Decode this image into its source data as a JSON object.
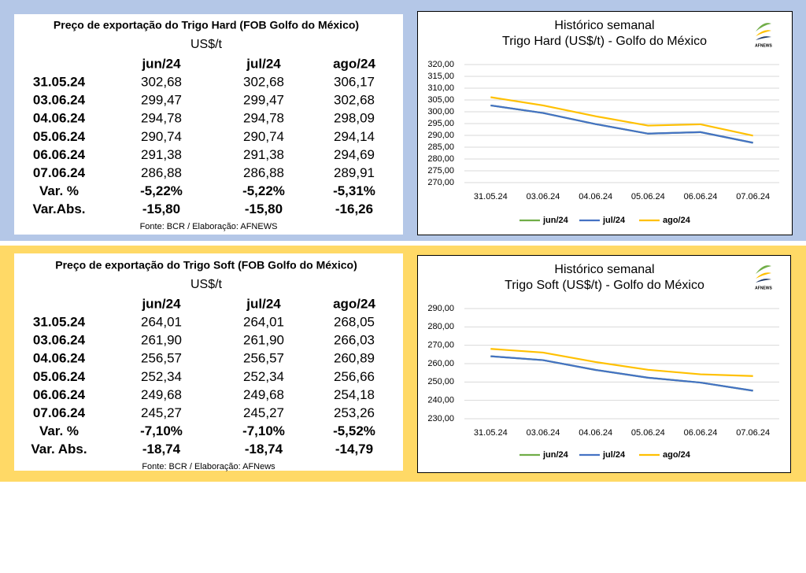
{
  "logo": "AFNEWS",
  "tables": [
    {
      "title": "Preço de exportação do Trigo Hard (FOB Golfo do México)",
      "unit": "US$/t",
      "columns": [
        "jun/24",
        "jul/24",
        "ago/24"
      ],
      "rows": [
        [
          "31.05.24",
          "302,68",
          "302,68",
          "306,17"
        ],
        [
          "03.06.24",
          "299,47",
          "299,47",
          "302,68"
        ],
        [
          "04.06.24",
          "294,78",
          "294,78",
          "298,09"
        ],
        [
          "05.06.24",
          "290,74",
          "290,74",
          "294,14"
        ],
        [
          "06.06.24",
          "291,38",
          "291,38",
          "294,69"
        ],
        [
          "07.06.24",
          "286,88",
          "286,88",
          "289,91"
        ],
        [
          "Var. %",
          "-5,22%",
          "-5,22%",
          "-5,31%"
        ],
        [
          "Var.Abs.",
          "-15,80",
          "-15,80",
          "-16,26"
        ]
      ],
      "source": "Fonte: BCR  / Elaboração: AFNEWS"
    },
    {
      "title": "Preço de exportação do Trigo Soft (FOB Golfo do México)",
      "unit": "US$/t",
      "columns": [
        "jun/24",
        "jul/24",
        "ago/24"
      ],
      "rows": [
        [
          "31.05.24",
          "264,01",
          "264,01",
          "268,05"
        ],
        [
          "03.06.24",
          "261,90",
          "261,90",
          "266,03"
        ],
        [
          "04.06.24",
          "256,57",
          "256,57",
          "260,89"
        ],
        [
          "05.06.24",
          "252,34",
          "252,34",
          "256,66"
        ],
        [
          "06.06.24",
          "249,68",
          "249,68",
          "254,18"
        ],
        [
          "07.06.24",
          "245,27",
          "245,27",
          "253,26"
        ],
        [
          "Var. %",
          "-7,10%",
          "-7,10%",
          "-5,52%"
        ],
        [
          "Var. Abs.",
          "-18,74",
          "-18,74",
          "-14,79"
        ]
      ],
      "source": "Fonte: BCR / Elaboração: AFNews"
    }
  ],
  "chart_data": [
    {
      "type": "line",
      "title": "Histórico semanal",
      "subtitle": "Trigo Hard (US$/t) - Golfo do México",
      "categories": [
        "31.05.24",
        "03.06.24",
        "04.06.24",
        "05.06.24",
        "06.06.24",
        "07.06.24"
      ],
      "series": [
        {
          "name": "jun/24",
          "color": "#70ad47",
          "values": [
            302.68,
            299.47,
            294.78,
            290.74,
            291.38,
            286.88
          ]
        },
        {
          "name": "jul/24",
          "color": "#4472c4",
          "values": [
            302.68,
            299.47,
            294.78,
            290.74,
            291.38,
            286.88
          ]
        },
        {
          "name": "ago/24",
          "color": "#ffc000",
          "values": [
            306.17,
            302.68,
            298.09,
            294.14,
            294.69,
            289.91
          ]
        }
      ],
      "ylim": [
        270,
        320
      ],
      "yticks": [
        {
          "value": 270,
          "label": "270,00"
        },
        {
          "value": 275,
          "label": "275,00"
        },
        {
          "value": 280,
          "label": "280,00"
        },
        {
          "value": 285,
          "label": "285,00"
        },
        {
          "value": 290,
          "label": "290,00"
        },
        {
          "value": 295,
          "label": "295,00"
        },
        {
          "value": 300,
          "label": "300,00"
        },
        {
          "value": 305,
          "label": "305,00"
        },
        {
          "value": 310,
          "label": "310,00"
        },
        {
          "value": 315,
          "label": "315,00"
        },
        {
          "value": 320,
          "label": "320,00"
        }
      ],
      "grid": true,
      "legend": "bottom"
    },
    {
      "type": "line",
      "title": "Histórico semanal",
      "subtitle": "Trigo Soft (US$/t) - Golfo do México",
      "categories": [
        "31.05.24",
        "03.06.24",
        "04.06.24",
        "05.06.24",
        "06.06.24",
        "07.06.24"
      ],
      "series": [
        {
          "name": "jun/24",
          "color": "#70ad47",
          "values": [
            264.01,
            261.9,
            256.57,
            252.34,
            249.68,
            245.27
          ]
        },
        {
          "name": "jul/24",
          "color": "#4472c4",
          "values": [
            264.01,
            261.9,
            256.57,
            252.34,
            249.68,
            245.27
          ]
        },
        {
          "name": "ago/24",
          "color": "#ffc000",
          "values": [
            268.05,
            266.03,
            260.89,
            256.66,
            254.18,
            253.26
          ]
        }
      ],
      "ylim": [
        230,
        290
      ],
      "yticks": [
        {
          "value": 230,
          "label": "230,00"
        },
        {
          "value": 240,
          "label": "240,00"
        },
        {
          "value": 250,
          "label": "250,00"
        },
        {
          "value": 260,
          "label": "260,00"
        },
        {
          "value": 270,
          "label": "270,00"
        },
        {
          "value": 280,
          "label": "280,00"
        },
        {
          "value": 290,
          "label": "290,00"
        }
      ],
      "grid": true,
      "legend": "bottom"
    }
  ]
}
